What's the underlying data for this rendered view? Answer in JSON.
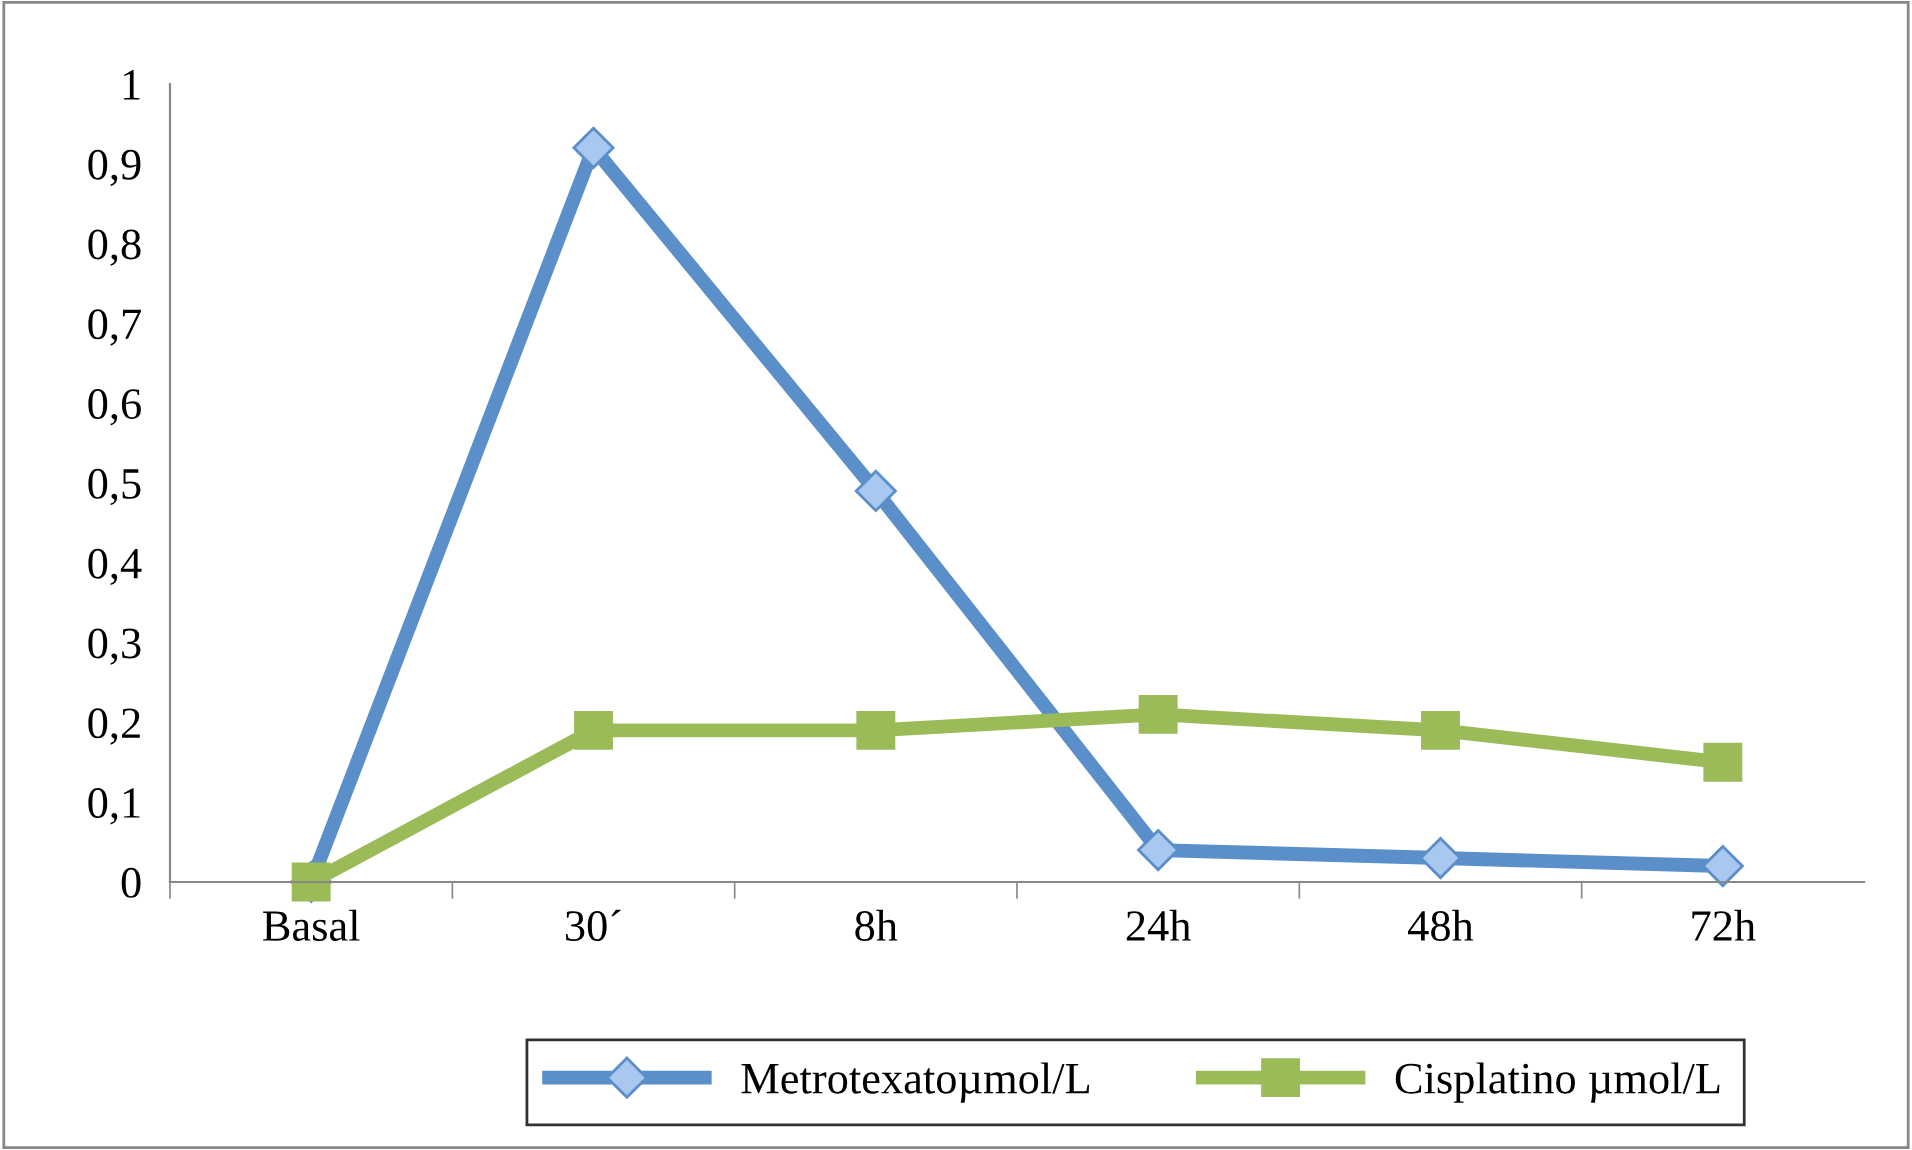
{
  "chart_data": {
    "type": "line",
    "categories": [
      "Basal",
      "30´",
      "8h",
      "24h",
      "48h",
      "72h"
    ],
    "series": [
      {
        "name": "Metrotexatoµmol/L",
        "color": "#5b8fc9",
        "marker": "diamond",
        "values": [
          0,
          0.92,
          0.49,
          0.04,
          0.03,
          0.02
        ]
      },
      {
        "name": "Cisplatino µmol/L",
        "color": "#9bbb59",
        "marker": "square",
        "values": [
          0,
          0.19,
          0.19,
          0.21,
          0.19,
          0.15
        ]
      }
    ],
    "ylim": [
      0,
      1
    ],
    "yticks": [
      0,
      {
        "value": 0.1,
        "label": "0,1"
      },
      {
        "value": 0.2,
        "label": "0,2"
      },
      {
        "value": 0.3,
        "label": "0,3"
      },
      {
        "value": 0.4,
        "label": "0,4"
      },
      {
        "value": 0.5,
        "label": "0,5"
      },
      {
        "value": 0.6,
        "label": "0,6"
      },
      {
        "value": 0.7,
        "label": "0,7"
      },
      {
        "value": 0.8,
        "label": "0,8"
      },
      {
        "value": 0.9,
        "label": "0,9"
      },
      1
    ],
    "grid": false,
    "legend": "bottom",
    "line_style": "solid"
  }
}
